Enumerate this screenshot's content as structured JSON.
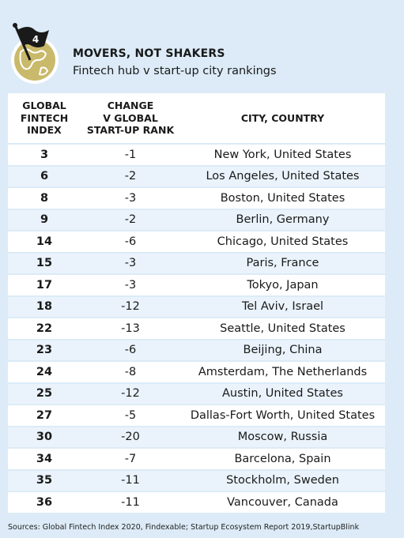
{
  "badge": {
    "number": "4"
  },
  "title": "MOVERS, NOT SHAKERS",
  "subtitle": "Fintech hub v start-up city rankings",
  "columns": {
    "index": [
      "GLOBAL",
      "FINTECH",
      "INDEX"
    ],
    "change": [
      "CHANGE",
      "V GLOBAL",
      "START-UP RANK"
    ],
    "city": "CITY, COUNTRY"
  },
  "chart_data": {
    "type": "table",
    "headers": [
      "GLOBAL FINTECH INDEX",
      "CHANGE V GLOBAL START-UP RANK",
      "CITY, COUNTRY"
    ],
    "rows": [
      {
        "index": "3",
        "change": "-1",
        "city": "New York, United States"
      },
      {
        "index": "6",
        "change": "-2",
        "city": "Los Angeles, United States"
      },
      {
        "index": "8",
        "change": "-3",
        "city": "Boston, United States"
      },
      {
        "index": "9",
        "change": "-2",
        "city": "Berlin, Germany"
      },
      {
        "index": "14",
        "change": "-6",
        "city": "Chicago, United States"
      },
      {
        "index": "15",
        "change": "-3",
        "city": "Paris, France"
      },
      {
        "index": "17",
        "change": "-3",
        "city": "Tokyo, Japan"
      },
      {
        "index": "18",
        "change": "-12",
        "city": "Tel Aviv, Israel"
      },
      {
        "index": "22",
        "change": "-13",
        "city": "Seattle, United States"
      },
      {
        "index": "23",
        "change": "-6",
        "city": "Beijing, China"
      },
      {
        "index": "24",
        "change": "-8",
        "city": "Amsterdam, The Netherlands"
      },
      {
        "index": "25",
        "change": "-12",
        "city": "Austin, United States"
      },
      {
        "index": "27",
        "change": "-5",
        "city": "Dallas-Fort Worth, United States"
      },
      {
        "index": "30",
        "change": "-20",
        "city": "Moscow, Russia"
      },
      {
        "index": "34",
        "change": "-7",
        "city": "Barcelona, Spain"
      },
      {
        "index": "35",
        "change": "-11",
        "city": "Stockholm, Sweden"
      },
      {
        "index": "36",
        "change": "-11",
        "city": "Vancouver, Canada"
      }
    ]
  },
  "source": "Sources: Global Fintech Index 2020, Findexable; Startup Ecosystem Report 2019,StartupBlink",
  "colors": {
    "background": "#dcebf7",
    "globe": "#c9b96a",
    "flag": "#1a1a1a"
  }
}
